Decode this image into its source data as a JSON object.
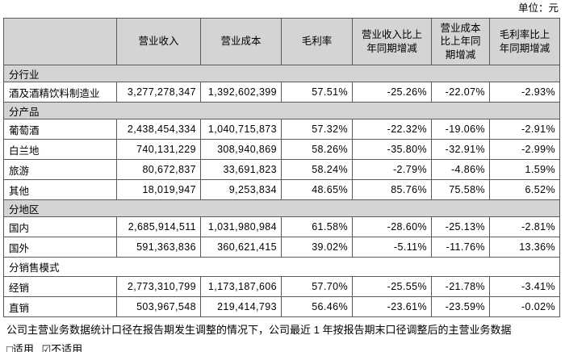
{
  "unit_label": "单位：元",
  "table": {
    "columns": [
      "",
      "营业收入",
      "营业成本",
      "毛利率",
      "营业收入比上\n年同期增减",
      "营业成本\n比上年同\n期增减",
      "毛利率比上\n年同期增减"
    ],
    "sections": [
      {
        "title": "分行业",
        "shaded": true,
        "rows": [
          {
            "label": "酒及酒精饮料制造业",
            "values": [
              "3,277,278,347",
              "1,392,602,399",
              "57.51%",
              "-25.26%",
              "-22.07%",
              "-2.93%"
            ]
          }
        ]
      },
      {
        "title": "分产品",
        "shaded": true,
        "rows": [
          {
            "label": "葡萄酒",
            "values": [
              "2,438,454,334",
              "1,040,715,873",
              "57.32%",
              "-22.32%",
              "-19.06%",
              "-2.91%"
            ]
          },
          {
            "label": "白兰地",
            "values": [
              "740,131,229",
              "308,940,869",
              "58.26%",
              "-35.80%",
              "-32.91%",
              "-2.99%"
            ]
          },
          {
            "label": "旅游",
            "values": [
              "80,672,837",
              "33,691,823",
              "58.24%",
              "-2.79%",
              "-4.86%",
              "1.59%"
            ]
          },
          {
            "label": "其他",
            "values": [
              "18,019,947",
              "9,253,834",
              "48.65%",
              "85.76%",
              "75.58%",
              "6.52%"
            ]
          }
        ]
      },
      {
        "title": "分地区",
        "shaded": true,
        "rows": [
          {
            "label": "国内",
            "values": [
              "2,685,914,511",
              "1,031,980,984",
              "61.58%",
              "-28.60%",
              "-25.13%",
              "-2.81%"
            ]
          },
          {
            "label": "国外",
            "values": [
              "591,363,836",
              "360,621,415",
              "39.02%",
              "-5.11%",
              "-11.76%",
              "13.36%"
            ]
          }
        ]
      },
      {
        "title": "分销售模式",
        "shaded": false,
        "rows": [
          {
            "label": "经销",
            "values": [
              "2,773,310,799",
              "1,173,187,606",
              "57.70%",
              "-25.55%",
              "-21.78%",
              "-3.41%"
            ]
          },
          {
            "label": "直销",
            "values": [
              "503,967,548",
              "219,414,793",
              "56.46%",
              "-23.61%",
              "-23.59%",
              "-0.02%"
            ]
          }
        ]
      }
    ]
  },
  "footer": {
    "note": "公司主营业务数据统计口径在报告期发生调整的情况下，公司最近 1 年按报告期末口径调整后的主营业务数据",
    "applicable_option": "□适用",
    "not_applicable_option": "☑不适用"
  },
  "colors": {
    "header_bg": "#d4d4d4",
    "section_bg": "#d4d4d4",
    "border": "#5a5a5a",
    "text": "#000000",
    "page_bg": "#ffffff"
  }
}
